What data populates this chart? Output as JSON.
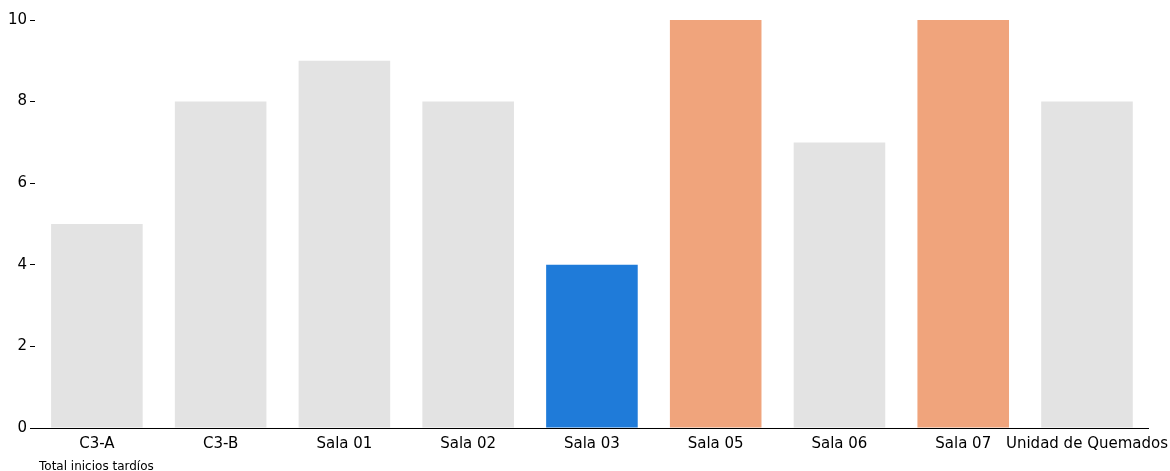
{
  "chart_data": {
    "type": "bar",
    "xlabel": "Total inicios tardíos",
    "categories": [
      "C3-A",
      "C3-B",
      "Sala 01",
      "Sala 02",
      "Sala 03",
      "Sala 05",
      "Sala 06",
      "Sala 07",
      "Unidad de Quemados"
    ],
    "values": [
      5,
      8,
      9,
      8,
      4,
      10,
      7,
      10,
      8
    ],
    "colors": [
      "#e3e3e3",
      "#e3e3e3",
      "#e3e3e3",
      "#e3e3e3",
      "#1f7bd9",
      "#f0a47c",
      "#e3e3e3",
      "#f0a47c",
      "#e3e3e3"
    ],
    "ylim": [
      0,
      10
    ],
    "yticks": [
      0,
      2,
      4,
      6,
      8,
      10
    ],
    "grid": false,
    "legend": false
  }
}
